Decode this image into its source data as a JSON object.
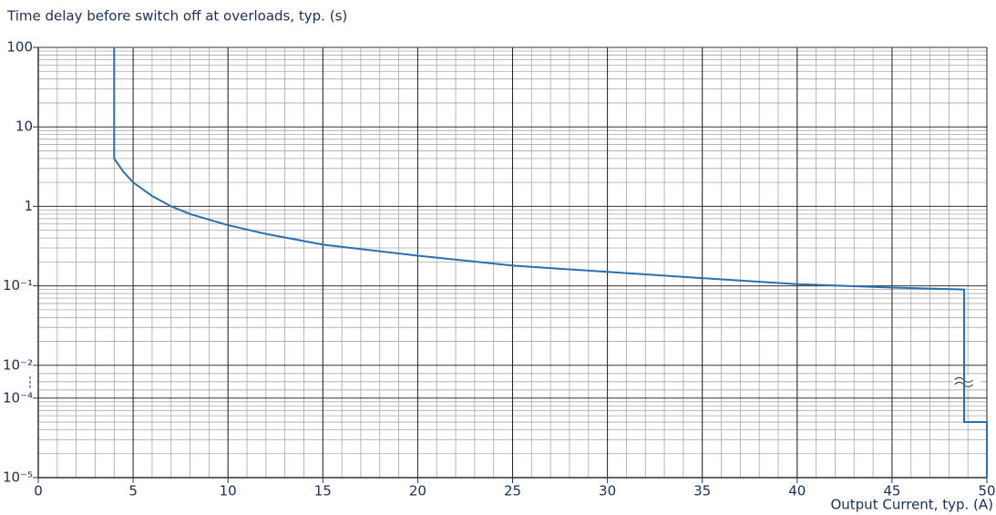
{
  "chart_data": {
    "type": "line",
    "title": "Time delay before switch off at overloads, typ. (s)",
    "x_label": "Output Current, typ. (A)",
    "x": [
      4,
      4,
      4.5,
      5,
      6,
      7,
      8,
      10,
      12,
      15,
      20,
      25,
      30,
      35,
      40,
      45,
      48.8,
      48.8,
      50,
      50
    ],
    "values": [
      100,
      4,
      2.7,
      2,
      1.35,
      1.0,
      0.8,
      0.58,
      0.45,
      0.33,
      0.24,
      0.18,
      0.15,
      0.125,
      0.105,
      0.095,
      0.09,
      5e-05,
      5e-05,
      1e-05
    ],
    "color": "#2a6fb0",
    "xlim": [
      0,
      50
    ],
    "xticks": [
      0,
      5,
      10,
      15,
      20,
      25,
      30,
      35,
      40,
      45,
      50
    ],
    "xminor_step": 1,
    "ylim": [
      1e-05,
      100
    ],
    "y_log": true,
    "y_break": [
      0.0001,
      0.01
    ],
    "yticks": [
      100,
      10,
      1,
      {
        "value": 0.1,
        "label": "10⁻¹"
      },
      {
        "value": 0.01,
        "label": "10⁻²"
      },
      {
        "value": 0.0001,
        "label": "10⁻⁴"
      },
      {
        "value": 1e-05,
        "label": "10⁻⁵"
      }
    ],
    "grid": true,
    "minor_grid": true
  }
}
